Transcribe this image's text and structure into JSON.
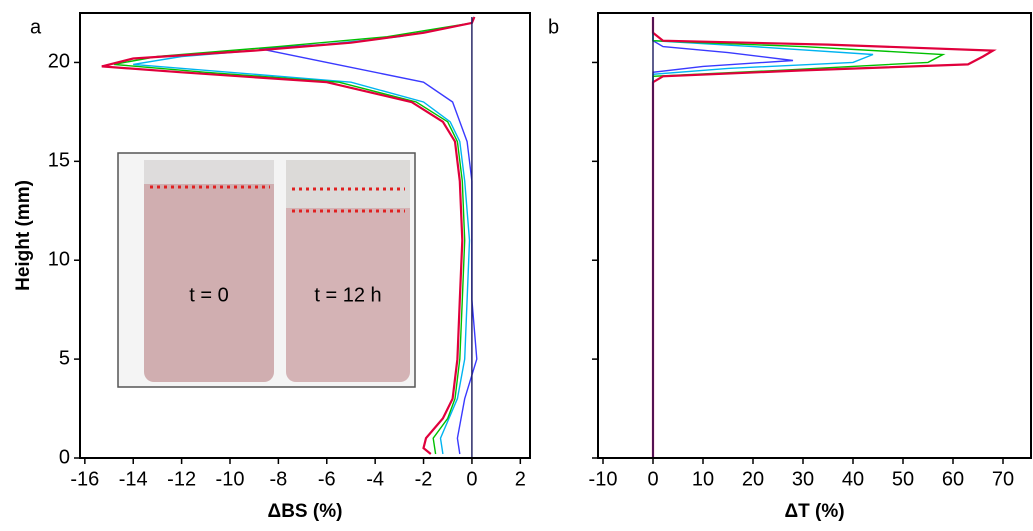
{
  "chart_data": [
    {
      "type": "line",
      "panel_label": "a",
      "x_label": "ΔBS (%)",
      "y_label": "Height (mm)",
      "xlim": [
        -16.2,
        2.4
      ],
      "ylim": [
        0,
        22.5
      ],
      "xticks": [
        -16,
        -14,
        -12,
        -10,
        -8,
        -6,
        -4,
        -2,
        0,
        2
      ],
      "yticks": [
        0,
        5,
        10,
        15,
        20
      ],
      "inset_labels": [
        "t = 0",
        "t = 12 h"
      ],
      "series": [
        {
          "color": "#3a3aff",
          "values": [
            0.2,
            1,
            3,
            5,
            8,
            11,
            14,
            16,
            18,
            19,
            20,
            20.7,
            21,
            21.5,
            22,
            22.3
          ],
          "x": [
            -0.5,
            -0.6,
            -0.3,
            0.2,
            0,
            0,
            0,
            -0.2,
            -0.8,
            -2,
            -6,
            -8.8,
            -5,
            -2,
            0,
            0.1
          ]
        },
        {
          "color": "#00b4f0",
          "values": [
            0.2,
            1,
            3,
            5,
            8,
            11,
            14,
            16,
            17,
            18,
            19,
            19.5,
            19.9,
            20.3,
            20.8,
            21.3,
            22,
            22.3
          ],
          "x": [
            -1.2,
            -1.3,
            -0.6,
            -0.3,
            -0.2,
            -0.1,
            -0.3,
            -0.5,
            -0.9,
            -2,
            -5,
            -10,
            -14,
            -12,
            -7,
            -3,
            0,
            0.1
          ]
        },
        {
          "color": "#00c000",
          "values": [
            0.2,
            1,
            2,
            3,
            5,
            8,
            11,
            14,
            16,
            17,
            18,
            19,
            19.5,
            19.9,
            20.3,
            20.8,
            21.3,
            22,
            22.3
          ],
          "x": [
            -1.5,
            -1.6,
            -1,
            -0.7,
            -0.5,
            -0.4,
            -0.3,
            -0.4,
            -0.6,
            -1,
            -2.3,
            -5.5,
            -11,
            -14.8,
            -13,
            -8,
            -3.5,
            0,
            0.1
          ]
        },
        {
          "color": "#e0003c",
          "values": [
            0.2,
            0.5,
            1,
            2,
            3,
            5,
            8,
            11,
            14,
            16,
            17,
            18,
            19,
            19.5,
            19.8,
            20.2,
            20.6,
            21,
            21.5,
            22,
            22.3
          ],
          "x": [
            -1.7,
            -2,
            -1.9,
            -1.2,
            -0.8,
            -0.6,
            -0.5,
            -0.4,
            -0.5,
            -0.7,
            -1.2,
            -2.5,
            -6,
            -12,
            -15.3,
            -14,
            -9,
            -5,
            -2,
            0,
            0.1
          ]
        },
        {
          "color": "#1a1a5e",
          "values": [
            0,
            22.3
          ],
          "x": [
            0,
            0
          ]
        }
      ]
    },
    {
      "type": "line",
      "panel_label": "b",
      "x_label": "ΔT (%)",
      "xlim": [
        -11,
        75.6
      ],
      "ylim": [
        0,
        22.5
      ],
      "xticks": [
        -10,
        0,
        10,
        20,
        30,
        40,
        50,
        60,
        70
      ],
      "yticks": [
        0,
        5,
        10,
        15,
        20
      ],
      "series": [
        {
          "color": "#3a3aff",
          "values": [
            0,
            19.5,
            19.8,
            20.1,
            20.5,
            20.8,
            21.1,
            22.3
          ],
          "x": [
            0,
            0,
            10,
            28,
            15,
            2,
            0,
            0
          ]
        },
        {
          "color": "#00b4f0",
          "values": [
            0,
            19.4,
            19.7,
            20,
            20.4,
            20.8,
            21.1,
            22.3
          ],
          "x": [
            0,
            0,
            15,
            40,
            44,
            20,
            0,
            0
          ]
        },
        {
          "color": "#00c000",
          "values": [
            0,
            19.3,
            19.6,
            20,
            20.4,
            20.8,
            21.1,
            22.3
          ],
          "x": [
            0,
            0,
            25,
            55,
            58,
            30,
            0,
            0
          ]
        },
        {
          "color": "#e0003c",
          "values": [
            0,
            19,
            19.3,
            19.6,
            19.9,
            20.3,
            20.6,
            20.9,
            21.1,
            21.5,
            22.3
          ],
          "x": [
            0,
            0,
            2,
            30,
            63,
            66,
            68,
            35,
            2,
            0,
            0
          ]
        },
        {
          "color": "#1a1a5e",
          "values": [
            0,
            22.3
          ],
          "x": [
            0,
            0
          ]
        }
      ]
    }
  ]
}
